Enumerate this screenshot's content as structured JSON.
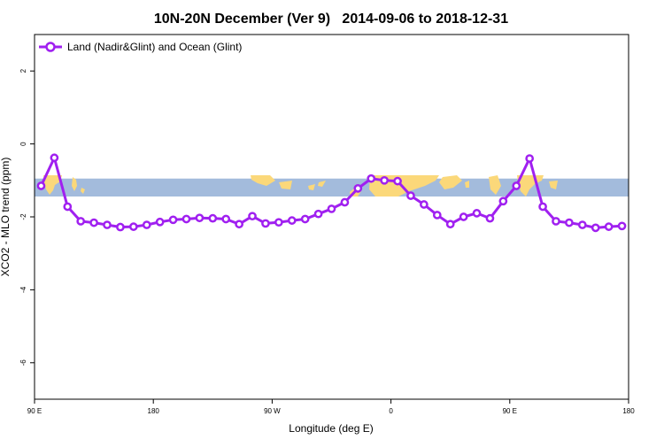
{
  "chart_data": {
    "type": "line",
    "title": "10N-20N December (Ver 9)   2014-09-06 to 2018-12-31",
    "xlabel": "Longitude (deg E)",
    "ylabel": "XCO2 - MLO trend (ppm)",
    "xlim": [
      90,
      540
    ],
    "ylim": [
      -7,
      3
    ],
    "x_ticks": [
      {
        "value": 90,
        "label": "90 E"
      },
      {
        "value": 180,
        "label": "180"
      },
      {
        "value": 270,
        "label": "90 W"
      },
      {
        "value": 360,
        "label": "0"
      },
      {
        "value": 450,
        "label": "90 E"
      },
      {
        "value": 540,
        "label": "180"
      }
    ],
    "y_ticks": [
      {
        "value": 2,
        "label": "2"
      },
      {
        "value": 0,
        "label": "0"
      },
      {
        "value": -2,
        "label": "-2"
      },
      {
        "value": -4,
        "label": "-4"
      },
      {
        "value": -6,
        "label": "-6"
      }
    ],
    "legend_position": "top-left",
    "map_strip": {
      "y_range": [
        -1.5,
        -0.95
      ],
      "ocean_color": "#a3bbdc",
      "land_color": "#fbd87a"
    },
    "series": [
      {
        "name": "Land (Nadir&Glint) and Ocean (Glint)",
        "color": "#a020f0",
        "x": [
          95,
          105,
          115,
          125,
          135,
          145,
          155,
          165,
          175,
          185,
          195,
          205,
          215,
          225,
          235,
          245,
          255,
          265,
          275,
          285,
          295,
          305,
          315,
          325,
          335,
          345,
          355,
          365,
          375,
          385,
          395,
          405,
          415,
          425,
          435,
          445,
          455,
          465,
          475,
          485,
          495,
          505,
          515,
          525,
          535
        ],
        "y": [
          -1.15,
          -0.38,
          -1.72,
          -2.12,
          -2.16,
          -2.22,
          -2.28,
          -2.27,
          -2.22,
          -2.14,
          -2.08,
          -2.06,
          -2.03,
          -2.04,
          -2.06,
          -2.2,
          -1.98,
          -2.18,
          -2.15,
          -2.1,
          -2.06,
          -1.92,
          -1.78,
          -1.6,
          -1.22,
          -0.95,
          -1.0,
          -1.02,
          -1.42,
          -1.66,
          -1.95,
          -2.2,
          -2.0,
          -1.9,
          -2.04,
          -1.57,
          -1.15,
          -0.4,
          -1.72,
          -2.12,
          -2.16,
          -2.22,
          -2.3,
          -2.27,
          -2.25
        ]
      }
    ]
  }
}
